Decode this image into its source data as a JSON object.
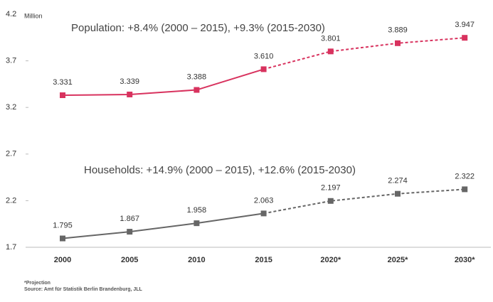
{
  "chart_data": {
    "type": "line",
    "y_unit_label": "Million",
    "categories": [
      "2000",
      "2005",
      "2010",
      "2015",
      "2020*",
      "2025*",
      "2030*"
    ],
    "series": [
      {
        "name": "Population",
        "color": "#d8325e",
        "dashed_from_index": 3,
        "values": [
          3.331,
          3.339,
          3.388,
          3.61,
          3.801,
          3.889,
          3.947
        ],
        "value_labels": [
          "3.331",
          "3.339",
          "3.388",
          "3.610",
          "3.801",
          "3.889",
          "3.947"
        ]
      },
      {
        "name": "Households",
        "color": "#666666",
        "dashed_from_index": 3,
        "values": [
          1.795,
          1.867,
          1.958,
          2.063,
          2.197,
          2.274,
          2.322
        ],
        "value_labels": [
          "1.795",
          "1.867",
          "1.958",
          "2.063",
          "2.197",
          "2.274",
          "2.322"
        ]
      }
    ],
    "annotations": [
      "Population: +8.4% (2000 – 2015), +9.3% (2015-2030)",
      "Households: +14.9% (2000 – 2015), +12.6% (2015-2030)"
    ],
    "ylim": [
      1.7,
      4.2
    ],
    "yticks": [
      1.7,
      2.2,
      2.7,
      3.2,
      3.7,
      4.2
    ],
    "grid": false,
    "footnotes": [
      "*Projection",
      "Source: Amt für Statistik Berlin Brandenburg, JLL"
    ]
  }
}
